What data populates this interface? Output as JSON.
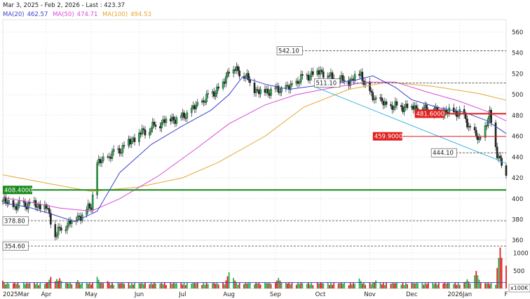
{
  "header": {
    "range_text": "Mar 3, 2025 - Feb 2, 2026 - Last : 423.37",
    "ma": [
      {
        "label": "MA(20)",
        "value": "462.57",
        "color": "#3a44cc"
      },
      {
        "label": "MA(50)",
        "value": "474.71",
        "color": "#d94bd9"
      },
      {
        "label": "MA(100)",
        "value": "494.53",
        "color": "#e8a531"
      }
    ]
  },
  "volume_unit": "x100K",
  "chart_data": {
    "type": "candlestick",
    "y_ticks": [
      360,
      380,
      400,
      420,
      440,
      460,
      480,
      500,
      520,
      540,
      560
    ],
    "ylim": [
      342,
      572
    ],
    "volume_ticks": [
      500,
      1000
    ],
    "volume_ylim": [
      0,
      1370
    ],
    "x_labels": [
      "2025Mar",
      "Apr",
      "May",
      "Jun",
      "Jul",
      "Aug",
      "Sep",
      "Oct",
      "Nov",
      "Dec",
      "2026Jan",
      "F"
    ],
    "x_label_dates": [
      "2025-03-03",
      "2025-04-01",
      "2025-05-01",
      "2025-06-02",
      "2025-07-01",
      "2025-08-01",
      "2025-09-01",
      "2025-10-01",
      "2025-11-03",
      "2025-12-01",
      "2026-01-02",
      "2026-02-02"
    ],
    "price_path": [
      [
        "2025-03-03",
        398
      ],
      [
        "2025-03-10",
        392
      ],
      [
        "2025-03-20",
        395
      ],
      [
        "2025-04-01",
        392
      ],
      [
        "2025-04-07",
        366
      ],
      [
        "2025-04-15",
        376
      ],
      [
        "2025-04-25",
        385
      ],
      [
        "2025-05-01",
        393
      ],
      [
        "2025-05-05",
        433
      ],
      [
        "2025-05-20",
        447
      ],
      [
        "2025-06-02",
        462
      ],
      [
        "2025-06-20",
        476
      ],
      [
        "2025-07-01",
        478
      ],
      [
        "2025-07-15",
        494
      ],
      [
        "2025-07-28",
        510
      ],
      [
        "2025-08-01",
        525
      ],
      [
        "2025-08-10",
        521
      ],
      [
        "2025-08-20",
        503
      ],
      [
        "2025-09-01",
        504
      ],
      [
        "2025-09-10",
        506
      ],
      [
        "2025-09-20",
        517
      ],
      [
        "2025-10-01",
        523
      ],
      [
        "2025-10-10",
        515
      ],
      [
        "2025-10-20",
        513
      ],
      [
        "2025-10-28",
        520
      ],
      [
        "2025-11-03",
        500
      ],
      [
        "2025-11-15",
        488
      ],
      [
        "2025-12-01",
        489
      ],
      [
        "2025-12-15",
        484
      ],
      [
        "2026-01-02",
        483
      ],
      [
        "2026-01-10",
        466
      ],
      [
        "2026-01-15",
        455
      ],
      [
        "2026-01-22",
        480
      ],
      [
        "2026-01-27",
        444
      ],
      [
        "2026-02-02",
        423.37
      ]
    ],
    "ma20_path": [
      [
        "2025-03-03",
        396
      ],
      [
        "2025-03-20",
        392
      ],
      [
        "2025-04-05",
        385
      ],
      [
        "2025-04-20",
        378
      ],
      [
        "2025-05-05",
        388
      ],
      [
        "2025-05-20",
        425
      ],
      [
        "2025-06-10",
        452
      ],
      [
        "2025-07-01",
        470
      ],
      [
        "2025-07-20",
        485
      ],
      [
        "2025-08-01",
        500
      ],
      [
        "2025-08-10",
        517
      ],
      [
        "2025-08-25",
        510
      ],
      [
        "2025-09-10",
        505
      ],
      [
        "2025-09-25",
        508
      ],
      [
        "2025-10-10",
        511
      ],
      [
        "2025-10-25",
        514
      ],
      [
        "2025-11-05",
        518
      ],
      [
        "2025-11-20",
        507
      ],
      [
        "2025-12-01",
        495
      ],
      [
        "2025-12-20",
        487
      ],
      [
        "2026-01-05",
        483
      ],
      [
        "2026-01-20",
        475
      ],
      [
        "2026-02-02",
        462.57
      ]
    ],
    "ma50_path": [
      [
        "2025-03-03",
        401
      ],
      [
        "2025-03-20",
        397
      ],
      [
        "2025-04-10",
        391
      ],
      [
        "2025-05-01",
        388
      ],
      [
        "2025-05-20",
        400
      ],
      [
        "2025-06-15",
        422
      ],
      [
        "2025-07-10",
        448
      ],
      [
        "2025-08-01",
        472
      ],
      [
        "2025-08-25",
        490
      ],
      [
        "2025-09-15",
        500
      ],
      [
        "2025-10-10",
        507
      ],
      [
        "2025-11-01",
        512
      ],
      [
        "2025-11-20",
        512
      ],
      [
        "2025-12-10",
        503
      ],
      [
        "2026-01-01",
        494
      ],
      [
        "2026-01-20",
        484
      ],
      [
        "2026-02-02",
        474.71
      ]
    ],
    "ma100_path": [
      [
        "2025-03-03",
        423
      ],
      [
        "2025-04-01",
        415
      ],
      [
        "2025-05-01",
        407
      ],
      [
        "2025-06-01",
        411
      ],
      [
        "2025-07-01",
        420
      ],
      [
        "2025-07-25",
        435
      ],
      [
        "2025-08-25",
        460
      ],
      [
        "2025-09-20",
        488
      ],
      [
        "2025-10-20",
        505
      ],
      [
        "2025-11-15",
        512
      ],
      [
        "2025-12-15",
        508
      ],
      [
        "2026-01-15",
        501
      ],
      [
        "2026-02-02",
        494.53
      ]
    ],
    "trendline": [
      [
        "2025-09-28",
        507
      ],
      [
        "2026-02-02",
        434
      ]
    ],
    "volume_bars": [
      [
        "2025-03-03",
        220
      ],
      [
        "2025-03-17",
        150
      ],
      [
        "2025-04-04",
        330
      ],
      [
        "2025-04-08",
        270
      ],
      [
        "2025-04-10",
        290
      ],
      [
        "2025-04-22",
        240
      ],
      [
        "2025-05-05",
        330
      ],
      [
        "2025-05-12",
        210
      ],
      [
        "2025-06-10",
        160
      ],
      [
        "2025-07-10",
        150
      ],
      [
        "2025-08-01",
        460
      ],
      [
        "2025-08-04",
        300
      ],
      [
        "2025-08-20",
        140
      ],
      [
        "2025-09-03",
        300
      ],
      [
        "2025-09-18",
        130
      ],
      [
        "2025-10-15",
        140
      ],
      [
        "2025-10-27",
        280
      ],
      [
        "2025-11-07",
        230
      ],
      [
        "2025-11-17",
        120
      ],
      [
        "2025-12-05",
        150
      ],
      [
        "2025-12-22",
        140
      ],
      [
        "2026-01-07",
        260
      ],
      [
        "2026-01-13",
        500
      ],
      [
        "2026-01-29",
        1160
      ],
      [
        "2026-02-02",
        650
      ]
    ],
    "volume_avg": 170,
    "annotations": [
      {
        "label": "542.10",
        "value": 542.1,
        "style": "box",
        "from": "2025-09-02"
      },
      {
        "label": "511.10",
        "value": 511.1,
        "style": "box",
        "from": "2025-09-27"
      },
      {
        "label": "481.6000",
        "value": 481.6,
        "style": "red",
        "from": "2025-12-03"
      },
      {
        "label": "459.9000",
        "value": 459.9,
        "style": "red",
        "from": "2025-11-05"
      },
      {
        "label": "444.10",
        "value": 444.1,
        "style": "box",
        "from": "2025-12-14"
      },
      {
        "label": "408.4000",
        "value": 408.4,
        "style": "green",
        "from": "2025-03-03"
      },
      {
        "label": "378.80",
        "value": 378.8,
        "style": "box",
        "from": "2025-03-03"
      },
      {
        "label": "354.60",
        "value": 354.6,
        "style": "box",
        "from": "2025-03-03"
      }
    ]
  }
}
